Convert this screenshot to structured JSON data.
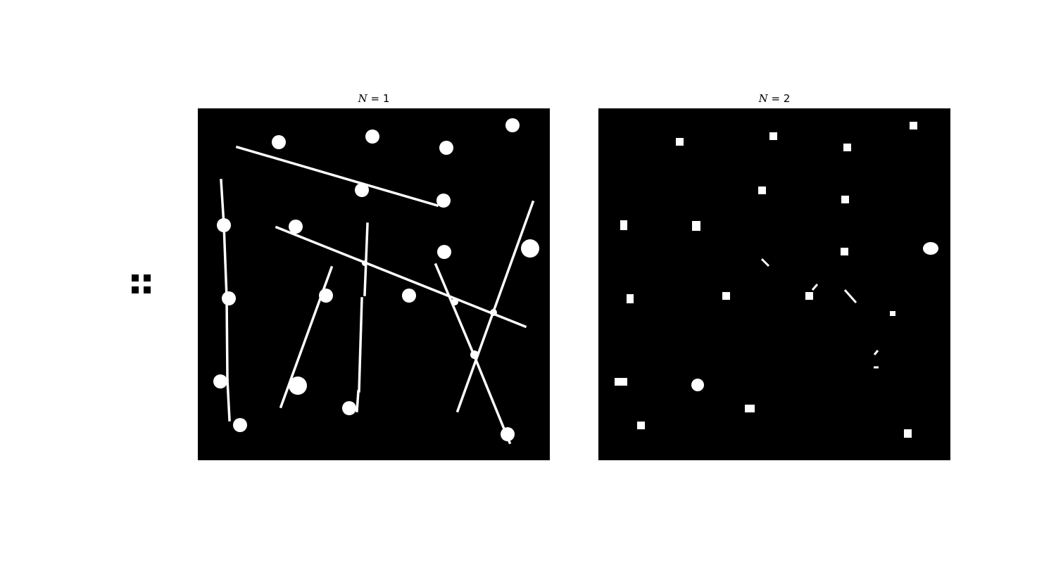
{
  "kernel": {
    "icon": "structuring-element-icon",
    "color": "#000000"
  },
  "panels": [
    {
      "title_var": "N",
      "title_rest": " = 1"
    },
    {
      "title_var": "N",
      "title_rest": " = 2"
    }
  ],
  "colors": {
    "background": "#000000",
    "foreground": "#ffffff"
  }
}
